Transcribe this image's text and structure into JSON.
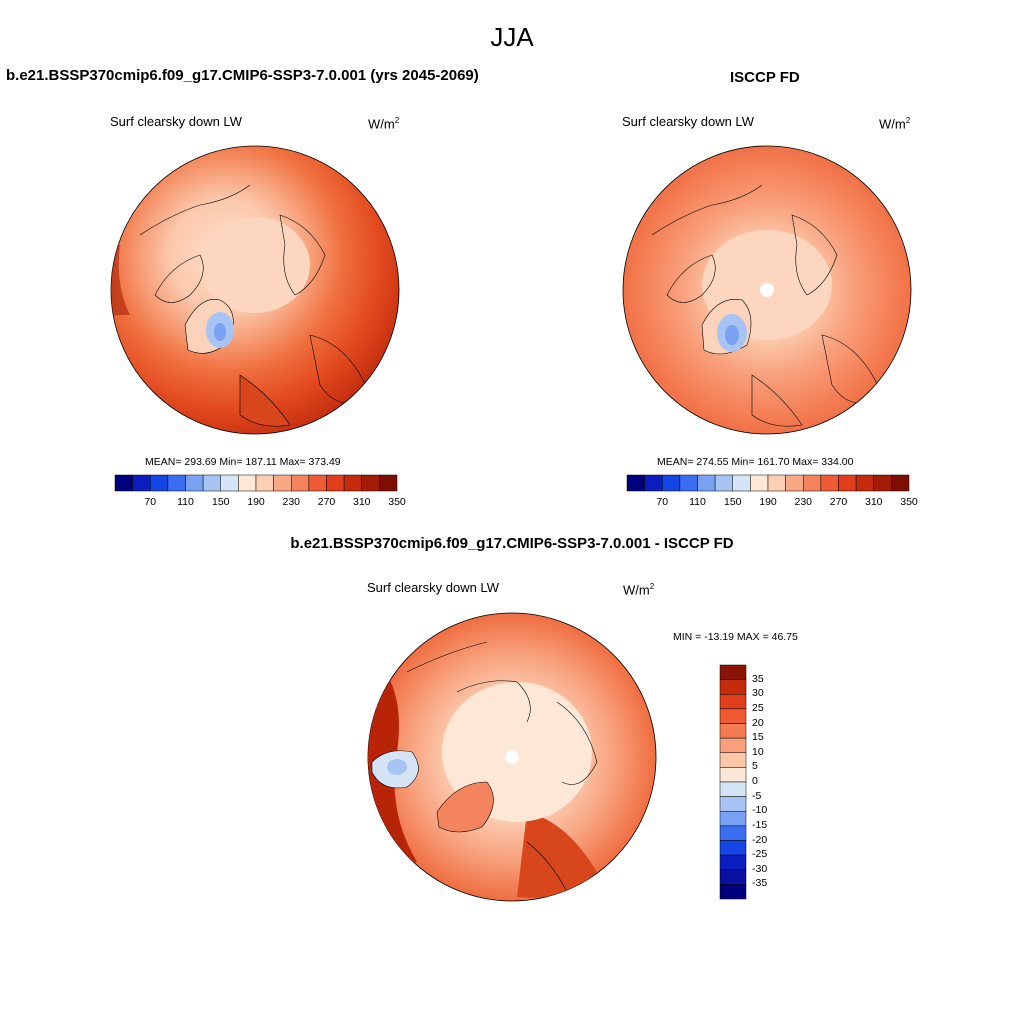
{
  "figure": {
    "season": "JJA",
    "variable": "Surf clearsky down LW",
    "units_base": "W/m",
    "units_exp": "2"
  },
  "panels": {
    "model": {
      "title": "b.e21.BSSP370cmip6.f09_g17.CMIP6-SSP3-7.0.001 (yrs 2045-2069)",
      "stats": "MEAN= 293.69  Min= 187.11  Max= 373.49",
      "mean": 293.69,
      "min": 187.11,
      "max": 373.49
    },
    "obs": {
      "title": "ISCCP FD",
      "stats": "MEAN= 274.55  Min= 161.70  Max= 334.00",
      "mean": 274.55,
      "min": 161.7,
      "max": 334.0
    },
    "diff": {
      "title": "b.e21.BSSP370cmip6.f09_g17.CMIP6-SSP3-7.0.001 - ISCCP FD",
      "stats": "MIN = -13.19 MAX =  46.75",
      "min": -13.19,
      "max": 46.75
    }
  },
  "colorbar_abs": {
    "labels": [
      "70",
      "110",
      "150",
      "190",
      "230",
      "270",
      "310",
      "350"
    ],
    "colors": [
      "#00007f",
      "#0a1ec0",
      "#1446e6",
      "#3a6ef0",
      "#7aa2f2",
      "#a8c4f4",
      "#d6e4f7",
      "#fde8d8",
      "#fccfb4",
      "#f9a886",
      "#f4845e",
      "#ee5c36",
      "#e03e1c",
      "#c42c0c",
      "#a31c06",
      "#7e0f02"
    ]
  },
  "colorbar_diff": {
    "labels": [
      "35",
      "30",
      "25",
      "20",
      "15",
      "10",
      "5",
      "0",
      "-5",
      "-10",
      "-15",
      "-20",
      "-25",
      "-30",
      "-35"
    ],
    "colors": [
      "#8c1405",
      "#c42c0c",
      "#e03e1c",
      "#ef5a30",
      "#f47c52",
      "#f8a07c",
      "#fbc7a8",
      "#fde8d8",
      "#d6e4f7",
      "#a8c4f4",
      "#7aa2f2",
      "#3a6ef0",
      "#1446e6",
      "#0a1ec0",
      "#0a10a0",
      "#00007f"
    ]
  }
}
